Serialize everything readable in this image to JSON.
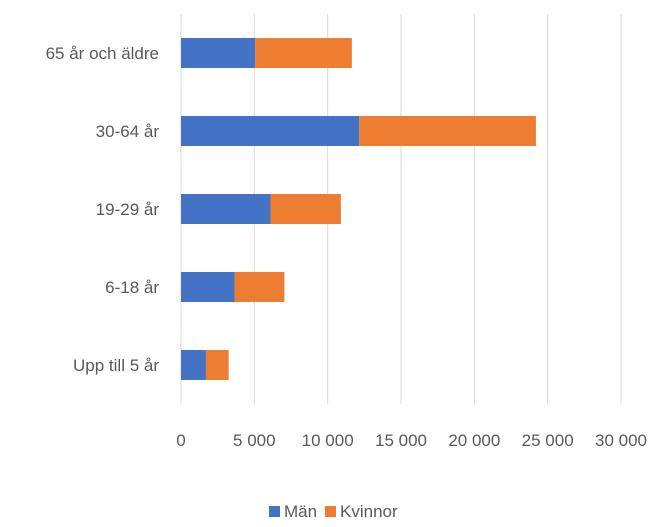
{
  "chart_data": {
    "type": "bar",
    "orientation": "horizontal",
    "stacked": true,
    "title": "",
    "xlabel": "",
    "ylabel": "",
    "categories": [
      "65 år och äldre",
      "30-64 år",
      "19-29 år",
      "6-18 år",
      "Upp till 5 år"
    ],
    "series": [
      {
        "name": "Män",
        "color": "#4472C4",
        "values": [
          5050,
          12150,
          6100,
          3650,
          1700
        ]
      },
      {
        "name": "Kvinnor",
        "color": "#ED7D31",
        "values": [
          6600,
          12050,
          4800,
          3400,
          1550
        ]
      }
    ],
    "xlim": [
      0,
      30000
    ],
    "xticks": [
      0,
      5000,
      10000,
      15000,
      20000,
      25000,
      30000
    ],
    "xtick_labels": [
      "0",
      "5 000",
      "10 000",
      "15 000",
      "20 000",
      "25 000",
      "30 000"
    ],
    "grid": true,
    "legend_position": "bottom"
  }
}
